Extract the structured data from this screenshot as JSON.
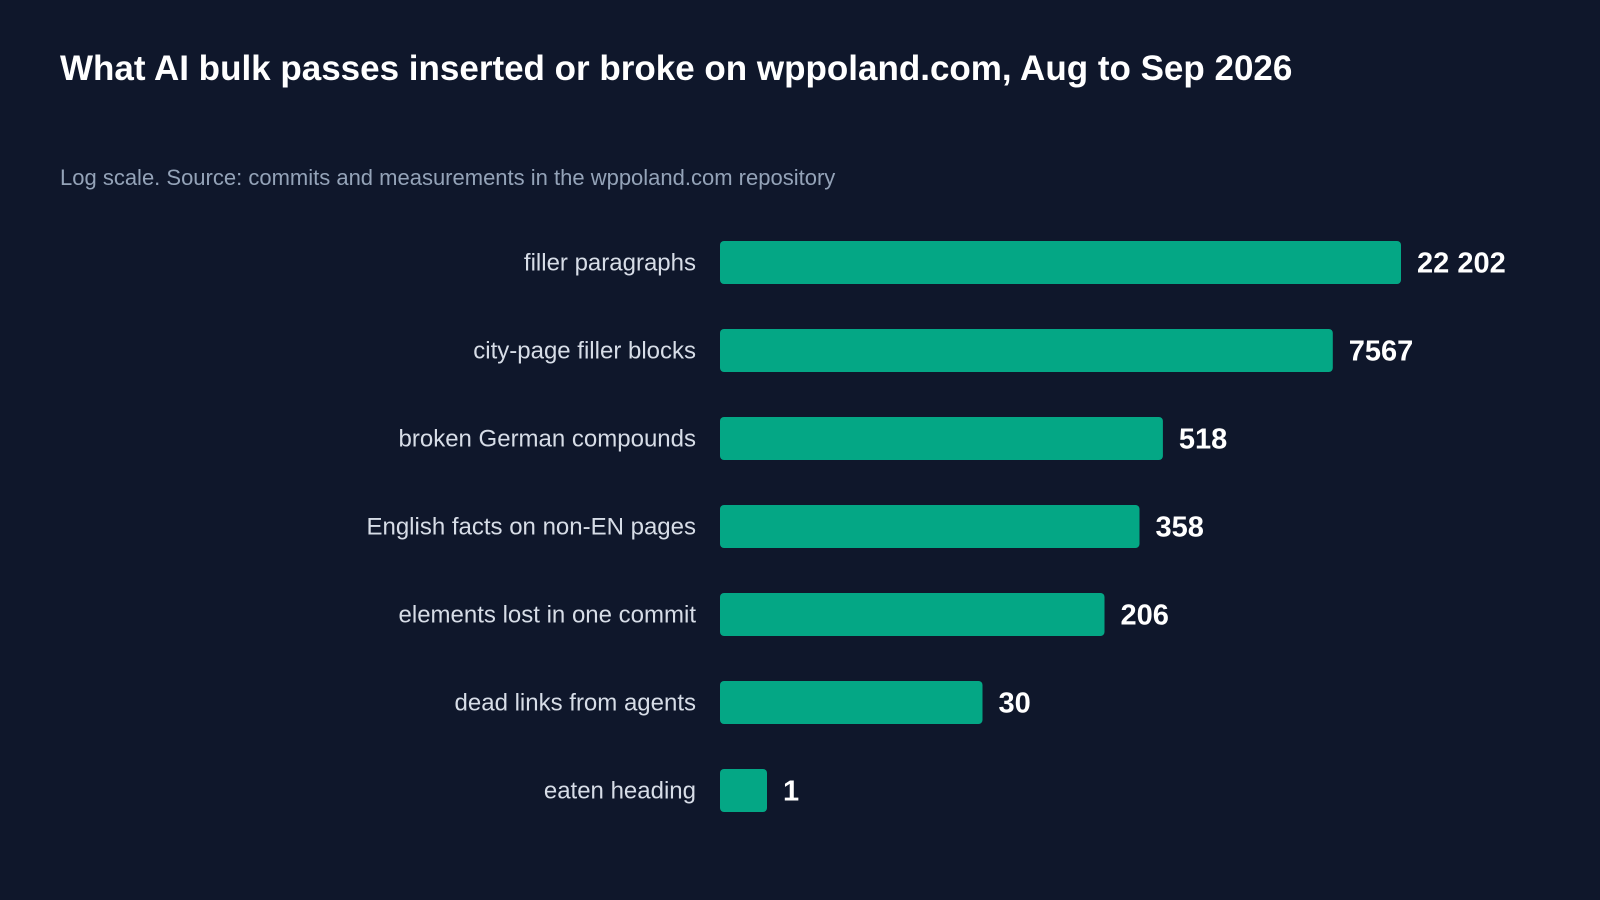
{
  "chart_data": {
    "type": "bar",
    "orientation": "horizontal",
    "scale": "log",
    "title": "What AI bulk passes inserted or broke on wppoland.com, Aug to Sep 2026",
    "subtitle": "Log scale. Source: commits and measurements in the wppoland.com repository",
    "categories": [
      "filler paragraphs",
      "city-page filler blocks",
      "broken German compounds",
      "English facts on non-EN pages",
      "elements lost in one commit",
      "dead links from agents",
      "eaten heading"
    ],
    "values": [
      22202,
      7567,
      518,
      358,
      206,
      30,
      1
    ],
    "value_labels": [
      "22 202",
      "7567",
      "518",
      "358",
      "206",
      "30",
      "1"
    ],
    "grid": false,
    "legend": "none"
  },
  "colors": {
    "background": "#0f172b",
    "bar": "#04a785",
    "title": "#ffffff",
    "subtitle": "#94a3b8",
    "category_label": "#d7dde7",
    "value_label": "#ffffff"
  }
}
